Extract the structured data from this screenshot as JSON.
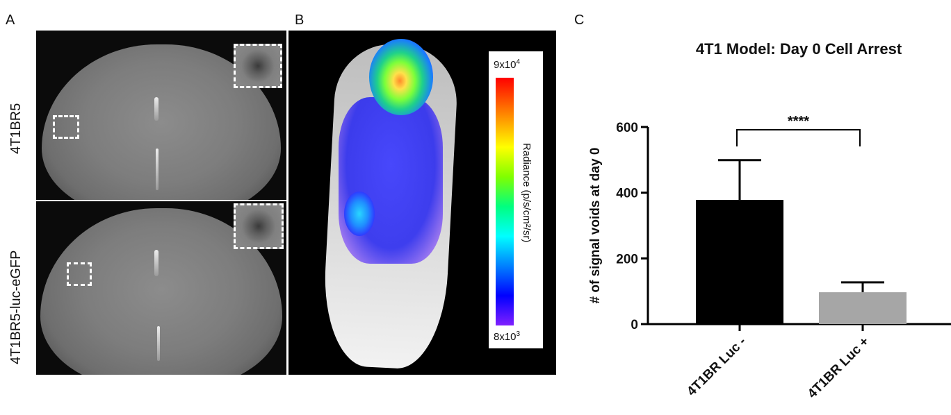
{
  "panels": {
    "a": {
      "letter": "A",
      "row_labels": [
        "4T1BR5",
        "4T1BR5-luc-eGFP"
      ]
    },
    "b": {
      "letter": "B",
      "scale": {
        "max_base": "9x10",
        "max_exp": "4",
        "min_base": "8x10",
        "min_exp": "3",
        "unit": "Radiance (p/s/cm²/sr)"
      }
    },
    "c": {
      "letter": "C"
    }
  },
  "chart_data": {
    "type": "bar",
    "title": "4T1 Model: Day 0 Cell Arrest",
    "ylabel": "# of signal voids at day 0",
    "xlabel": "",
    "categories": [
      "4T1BR Luc -",
      "4T1BR Luc +"
    ],
    "values": [
      378,
      97
    ],
    "errors": [
      121,
      30
    ],
    "colors": [
      "#000000",
      "#a6a6a6"
    ],
    "ylim": [
      0,
      600
    ],
    "yticks": [
      0,
      200,
      400,
      600
    ],
    "significance": {
      "label": "****",
      "between": [
        0,
        1
      ]
    }
  }
}
